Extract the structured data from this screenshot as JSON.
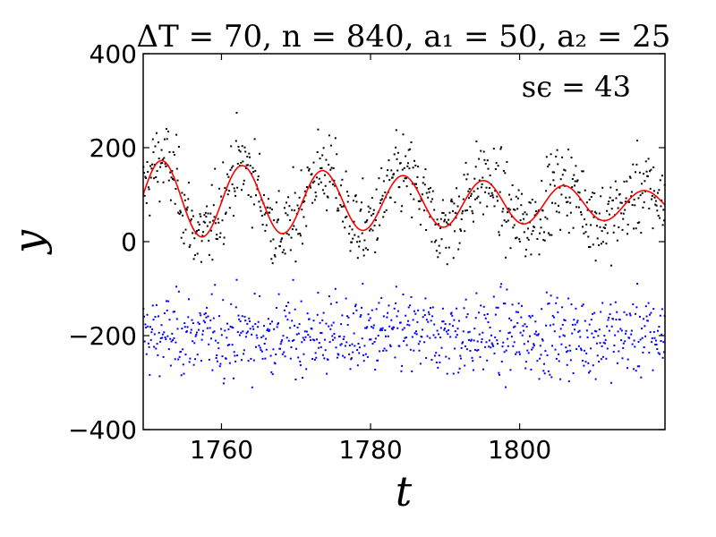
{
  "chart_data": {
    "type": "scatter",
    "title": "ΔT = 70, n = 840, a₁ = 50, a₂ = 25",
    "annotation": "sϵ = 43",
    "xlabel": "t",
    "ylabel": "y",
    "xlim": [
      1749.5,
      1819.5
    ],
    "ylim": [
      -400,
      400
    ],
    "x_ticks": [
      1760,
      1780,
      1800
    ],
    "x_tick_labels": [
      "1760",
      "1780",
      "1800"
    ],
    "y_ticks": [
      -400,
      -200,
      0,
      200,
      400
    ],
    "y_tick_labels": [
      "−400",
      "−200",
      "0",
      "200",
      "400"
    ],
    "grid": false,
    "legend": "none",
    "n_points": 840,
    "fit_curve": {
      "mean": [
        90,
        78
      ],
      "amplitude": [
        85,
        28
      ],
      "period": 10.8,
      "peak_t": 1762.8
    },
    "residual_spread": 43,
    "residual_offset": -200,
    "colors": {
      "fit_curve": "#ff0000",
      "data_points": "#000000",
      "residual_points": "#0000ff",
      "axes": "#000000",
      "background": "#ffffff"
    }
  }
}
